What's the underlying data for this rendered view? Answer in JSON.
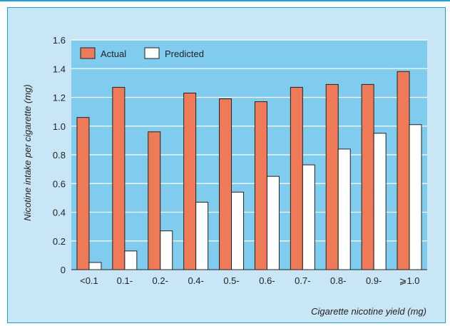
{
  "colors": {
    "background": "#c9e6f6",
    "border": "#1aa0dd",
    "actual": "#ee7a58",
    "predicted": "#ffffff",
    "gridline": "#ffffff"
  },
  "chart_data": {
    "type": "bar",
    "title": "",
    "xlabel": "Cigarette nicotine yield (mg)",
    "ylabel": "Nicotine intake per cigarette (mg)",
    "categories": [
      "<0.1",
      "0.1-",
      "0.2-",
      "0.4-",
      "0.5-",
      "0.6-",
      "0.7-",
      "0.8-",
      "0.9-",
      "⩾1.0"
    ],
    "series": [
      {
        "name": "Actual",
        "values": [
          1.06,
          1.27,
          0.96,
          1.23,
          1.19,
          1.17,
          1.27,
          1.29,
          1.29,
          1.38
        ]
      },
      {
        "name": "Predicted",
        "values": [
          0.05,
          0.13,
          0.27,
          0.47,
          0.54,
          0.65,
          0.73,
          0.84,
          0.95,
          1.01
        ]
      }
    ],
    "ylim": [
      0,
      1.6
    ],
    "yticks": [
      "0",
      "0.2",
      "0.4",
      "0.6",
      "0.8",
      "1.0",
      "1.2",
      "1.4",
      "1.6"
    ],
    "grid": true,
    "legend_position": "top-left"
  }
}
